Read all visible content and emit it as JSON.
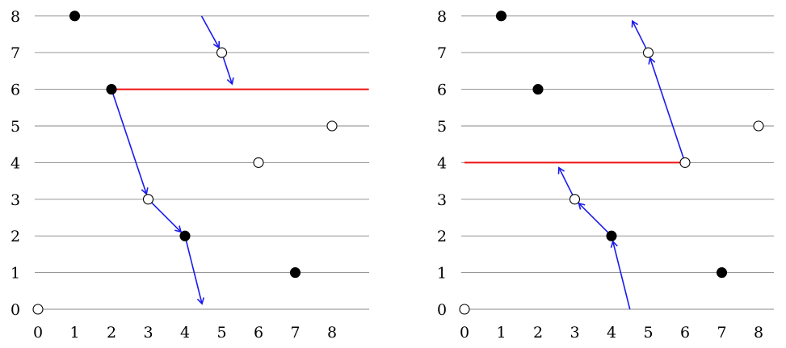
{
  "colors": {
    "grid": "#888888",
    "arrow": "#1a1aee",
    "highlight": "#ee1111",
    "filled": "#000000",
    "hollow": "#ffffff"
  },
  "axes": {
    "x_ticks": [
      "0",
      "1",
      "2",
      "3",
      "4",
      "5",
      "6",
      "7",
      "8"
    ],
    "y_ticks": [
      "0",
      "1",
      "2",
      "3",
      "4",
      "5",
      "6",
      "7",
      "8"
    ]
  },
  "panels": [
    {
      "id": "left",
      "points": [
        {
          "x": 0,
          "y": 0,
          "filled": false
        },
        {
          "x": 1,
          "y": 8,
          "filled": true
        },
        {
          "x": 2,
          "y": 6,
          "filled": true
        },
        {
          "x": 3,
          "y": 3,
          "filled": false
        },
        {
          "x": 4,
          "y": 2,
          "filled": true
        },
        {
          "x": 5,
          "y": 7,
          "filled": false
        },
        {
          "x": 6,
          "y": 4,
          "filled": false
        },
        {
          "x": 7,
          "y": 1,
          "filled": true
        },
        {
          "x": 8,
          "y": 5,
          "filled": false
        }
      ],
      "highlight_line": {
        "y": 6,
        "x_from": 2,
        "x_to": 9
      },
      "arrows": [
        {
          "from": [
            4.45,
            8.0
          ],
          "to": [
            5.0,
            7.0
          ]
        },
        {
          "from": [
            5.0,
            7.0
          ],
          "to": [
            5.33,
            6.0
          ]
        },
        {
          "from": [
            2.0,
            6.0
          ],
          "to": [
            3.0,
            3.0
          ]
        },
        {
          "from": [
            3.0,
            3.0
          ],
          "to": [
            4.0,
            2.0
          ]
        },
        {
          "from": [
            4.0,
            2.0
          ],
          "to": [
            4.5,
            0.0
          ]
        }
      ]
    },
    {
      "id": "right",
      "points": [
        {
          "x": 0,
          "y": 0,
          "filled": false
        },
        {
          "x": 1,
          "y": 8,
          "filled": true
        },
        {
          "x": 2,
          "y": 6,
          "filled": true
        },
        {
          "x": 3,
          "y": 3,
          "filled": false
        },
        {
          "x": 4,
          "y": 2,
          "filled": true
        },
        {
          "x": 5,
          "y": 7,
          "filled": false
        },
        {
          "x": 6,
          "y": 4,
          "filled": false
        },
        {
          "x": 7,
          "y": 1,
          "filled": true
        },
        {
          "x": 8,
          "y": 5,
          "filled": false
        }
      ],
      "highlight_line": {
        "y": 4,
        "x_from": 0,
        "x_to": 6
      },
      "arrows": [
        {
          "from": [
            4.5,
            0.0
          ],
          "to": [
            4.0,
            2.0
          ]
        },
        {
          "from": [
            4.0,
            2.0
          ],
          "to": [
            3.0,
            3.0
          ]
        },
        {
          "from": [
            3.0,
            3.0
          ],
          "to": [
            2.5,
            4.0
          ]
        },
        {
          "from": [
            6.0,
            4.0
          ],
          "to": [
            5.0,
            7.0
          ]
        },
        {
          "from": [
            5.0,
            7.0
          ],
          "to": [
            4.5,
            8.0
          ]
        }
      ]
    }
  ]
}
